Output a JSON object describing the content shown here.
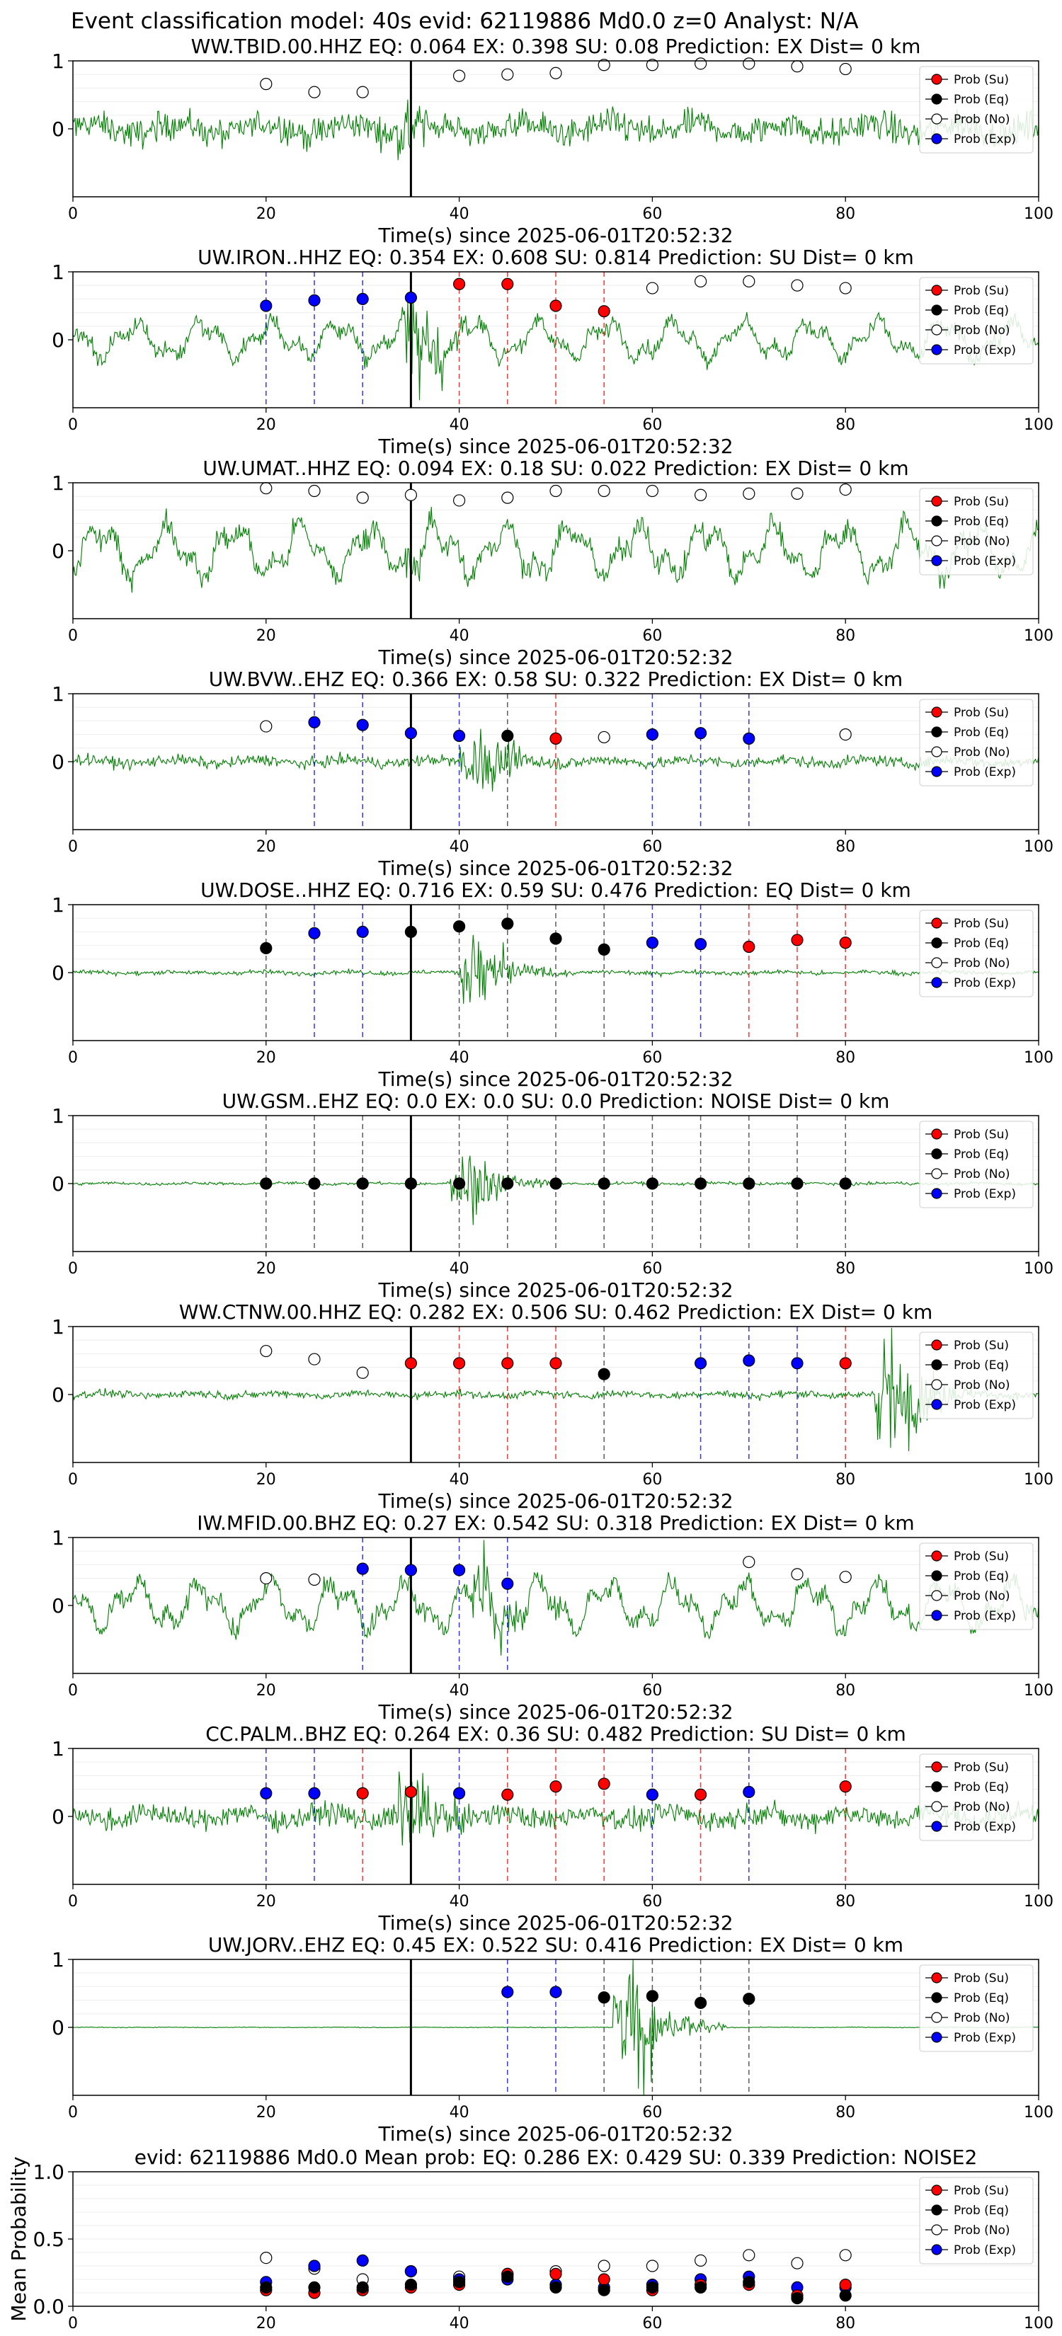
{
  "figure_title": "Event classification model: 40s evid: 62119886 Md0.0 z=0 Analyst: N/A",
  "legend": [
    "Prob (Su)",
    "Prob (Eq)",
    "Prob (No)",
    "Prob (Exp)"
  ],
  "colors": {
    "trace": "#008000",
    "su": "#ff0000",
    "eq": "#000000",
    "no": "#ffffff",
    "exp": "#0000ff",
    "pick": "#000000"
  },
  "chart_data": [
    {
      "type": "line",
      "title": "WW.TBID.00.HHZ   EQ: 0.064  EX: 0.398  SU: 0.08   Prediction: EX    Dist= 0 km",
      "xlabel": "Time(s) since 2025-06-01T20:52:32",
      "ylabel": "",
      "xlim": [
        0,
        100
      ],
      "ylim": [
        -1,
        1
      ],
      "xticks": [
        0,
        20,
        40,
        60,
        80,
        100
      ],
      "yticks": [
        0,
        1
      ],
      "pick_time": 35,
      "noise": {
        "amp": 0.4,
        "kind": "noisy",
        "burst_at": 35,
        "burst_amp": 0.3
      },
      "windows": [
        {
          "t": 20,
          "class": "no",
          "p": 0.66
        },
        {
          "t": 25,
          "class": "no",
          "p": 0.54
        },
        {
          "t": 30,
          "class": "no",
          "p": 0.54
        },
        {
          "t": 40,
          "class": "no",
          "p": 0.78
        },
        {
          "t": 45,
          "class": "no",
          "p": 0.8
        },
        {
          "t": 50,
          "class": "no",
          "p": 0.82
        },
        {
          "t": 55,
          "class": "no",
          "p": 0.94
        },
        {
          "t": 60,
          "class": "no",
          "p": 0.94
        },
        {
          "t": 65,
          "class": "no",
          "p": 0.96
        },
        {
          "t": 70,
          "class": "no",
          "p": 0.96
        },
        {
          "t": 75,
          "class": "no",
          "p": 0.92
        },
        {
          "t": 80,
          "class": "no",
          "p": 0.88
        }
      ]
    },
    {
      "type": "line",
      "title": "UW.IRON..HHZ   EQ: 0.354  EX: 0.608  SU: 0.814   Prediction: SU    Dist= 0 km",
      "xlabel": "Time(s) since 2025-06-01T20:52:32",
      "ylabel": "",
      "xlim": [
        0,
        100
      ],
      "ylim": [
        -1,
        1
      ],
      "xticks": [
        0,
        20,
        40,
        60,
        80,
        100
      ],
      "yticks": [
        0,
        1
      ],
      "pick_time": 35,
      "noise": {
        "amp": 0.35,
        "kind": "wavy",
        "burst_at": 36,
        "burst_amp": 0.55
      },
      "windows": [
        {
          "t": 20,
          "class": "exp",
          "p": 0.5
        },
        {
          "t": 25,
          "class": "exp",
          "p": 0.58
        },
        {
          "t": 30,
          "class": "exp",
          "p": 0.6
        },
        {
          "t": 35,
          "class": "exp",
          "p": 0.62
        },
        {
          "t": 40,
          "class": "su",
          "p": 0.82
        },
        {
          "t": 45,
          "class": "su",
          "p": 0.82
        },
        {
          "t": 50,
          "class": "su",
          "p": 0.5
        },
        {
          "t": 55,
          "class": "su",
          "p": 0.42
        },
        {
          "t": 60,
          "class": "no",
          "p": 0.76
        },
        {
          "t": 65,
          "class": "no",
          "p": 0.86
        },
        {
          "t": 70,
          "class": "no",
          "p": 0.86
        },
        {
          "t": 75,
          "class": "no",
          "p": 0.8
        },
        {
          "t": 80,
          "class": "no",
          "p": 0.76
        }
      ]
    },
    {
      "type": "line",
      "title": "UW.UMAT..HHZ   EQ: 0.094  EX: 0.18  SU: 0.022   Prediction: EX    Dist= 0 km",
      "xlabel": "Time(s) since 2025-06-01T20:52:32",
      "ylabel": "",
      "xlim": [
        0,
        100
      ],
      "ylim": [
        -1,
        1
      ],
      "xticks": [
        0,
        20,
        40,
        60,
        80,
        100
      ],
      "yticks": [
        0,
        1
      ],
      "pick_time": 35,
      "noise": {
        "amp": 0.5,
        "kind": "wavy",
        "burst_at": 36,
        "burst_amp": 0.2
      },
      "windows": [
        {
          "t": 20,
          "class": "no",
          "p": 0.92
        },
        {
          "t": 25,
          "class": "no",
          "p": 0.88
        },
        {
          "t": 30,
          "class": "no",
          "p": 0.78
        },
        {
          "t": 35,
          "class": "no",
          "p": 0.82
        },
        {
          "t": 40,
          "class": "no",
          "p": 0.74
        },
        {
          "t": 45,
          "class": "no",
          "p": 0.78
        },
        {
          "t": 50,
          "class": "no",
          "p": 0.88
        },
        {
          "t": 55,
          "class": "no",
          "p": 0.88
        },
        {
          "t": 60,
          "class": "no",
          "p": 0.88
        },
        {
          "t": 65,
          "class": "no",
          "p": 0.82
        },
        {
          "t": 70,
          "class": "no",
          "p": 0.84
        },
        {
          "t": 75,
          "class": "no",
          "p": 0.84
        },
        {
          "t": 80,
          "class": "no",
          "p": 0.9
        }
      ]
    },
    {
      "type": "line",
      "title": "UW.BVW..EHZ   EQ: 0.366  EX: 0.58  SU: 0.322   Prediction: EX    Dist= 0 km",
      "xlabel": "Time(s) since 2025-06-01T20:52:32",
      "ylabel": "",
      "xlim": [
        0,
        100
      ],
      "ylim": [
        -1,
        1
      ],
      "xticks": [
        0,
        20,
        40,
        60,
        80,
        100
      ],
      "yticks": [
        0,
        1
      ],
      "pick_time": 35,
      "noise": {
        "amp": 0.15,
        "kind": "noisy",
        "burst_at": 42,
        "burst_amp": 0.45
      },
      "windows": [
        {
          "t": 20,
          "class": "no",
          "p": 0.52
        },
        {
          "t": 25,
          "class": "exp",
          "p": 0.58
        },
        {
          "t": 30,
          "class": "exp",
          "p": 0.54
        },
        {
          "t": 35,
          "class": "exp",
          "p": 0.42
        },
        {
          "t": 40,
          "class": "exp",
          "p": 0.38
        },
        {
          "t": 45,
          "class": "eq",
          "p": 0.38
        },
        {
          "t": 50,
          "class": "su",
          "p": 0.34
        },
        {
          "t": 55,
          "class": "no",
          "p": 0.36
        },
        {
          "t": 60,
          "class": "exp",
          "p": 0.4
        },
        {
          "t": 65,
          "class": "exp",
          "p": 0.42
        },
        {
          "t": 70,
          "class": "exp",
          "p": 0.34
        },
        {
          "t": 80,
          "class": "no",
          "p": 0.4
        }
      ]
    },
    {
      "type": "line",
      "title": "UW.DOSE..HHZ   EQ: 0.716  EX: 0.59  SU: 0.476   Prediction: EQ    Dist= 0 km",
      "xlabel": "Time(s) since 2025-06-01T20:52:32",
      "ylabel": "",
      "xlim": [
        0,
        100
      ],
      "ylim": [
        -1,
        1
      ],
      "xticks": [
        0,
        20,
        40,
        60,
        80,
        100
      ],
      "yticks": [
        0,
        1
      ],
      "pick_time": 35,
      "noise": {
        "amp": 0.06,
        "kind": "noisy",
        "burst_at": 42,
        "burst_amp": 0.5
      },
      "windows": [
        {
          "t": 20,
          "class": "eq",
          "p": 0.36
        },
        {
          "t": 25,
          "class": "exp",
          "p": 0.58
        },
        {
          "t": 30,
          "class": "exp",
          "p": 0.6
        },
        {
          "t": 35,
          "class": "eq",
          "p": 0.6
        },
        {
          "t": 40,
          "class": "eq",
          "p": 0.68
        },
        {
          "t": 45,
          "class": "eq",
          "p": 0.72
        },
        {
          "t": 50,
          "class": "eq",
          "p": 0.5
        },
        {
          "t": 55,
          "class": "eq",
          "p": 0.34
        },
        {
          "t": 60,
          "class": "exp",
          "p": 0.44
        },
        {
          "t": 65,
          "class": "exp",
          "p": 0.42
        },
        {
          "t": 70,
          "class": "su",
          "p": 0.38
        },
        {
          "t": 75,
          "class": "su",
          "p": 0.48
        },
        {
          "t": 80,
          "class": "su",
          "p": 0.44
        }
      ]
    },
    {
      "type": "line",
      "title": "UW.GSM..EHZ   EQ: 0.0  EX: 0.0  SU: 0.0   Prediction: NOISE    Dist= 0 km",
      "xlabel": "Time(s) since 2025-06-01T20:52:32",
      "ylabel": "",
      "xlim": [
        0,
        100
      ],
      "ylim": [
        -1,
        1
      ],
      "xticks": [
        0,
        20,
        40,
        60,
        80,
        100
      ],
      "yticks": [
        0,
        1
      ],
      "pick_time": 35,
      "noise": {
        "amp": 0.04,
        "kind": "noisy",
        "burst_at": 41,
        "burst_amp": 0.5
      },
      "windows": [
        {
          "t": 20,
          "class": "eq",
          "p": 0.0
        },
        {
          "t": 25,
          "class": "eq",
          "p": 0.0
        },
        {
          "t": 30,
          "class": "eq",
          "p": 0.0
        },
        {
          "t": 35,
          "class": "eq",
          "p": 0.0
        },
        {
          "t": 40,
          "class": "eq",
          "p": 0.0
        },
        {
          "t": 45,
          "class": "eq",
          "p": 0.0
        },
        {
          "t": 50,
          "class": "eq",
          "p": 0.0
        },
        {
          "t": 55,
          "class": "eq",
          "p": 0.0
        },
        {
          "t": 60,
          "class": "eq",
          "p": 0.0
        },
        {
          "t": 65,
          "class": "eq",
          "p": 0.0
        },
        {
          "t": 70,
          "class": "eq",
          "p": 0.0
        },
        {
          "t": 75,
          "class": "eq",
          "p": 0.0
        },
        {
          "t": 80,
          "class": "eq",
          "p": 0.0
        }
      ]
    },
    {
      "type": "line",
      "title": "WW.CTNW.00.HHZ   EQ: 0.282  EX: 0.506  SU: 0.462   Prediction: EX    Dist= 0 km",
      "xlabel": "Time(s) since 2025-06-01T20:52:32",
      "ylabel": "",
      "xlim": [
        0,
        100
      ],
      "ylim": [
        -1,
        1
      ],
      "xticks": [
        0,
        20,
        40,
        60,
        80,
        100
      ],
      "yticks": [
        0,
        1
      ],
      "pick_time": 35,
      "noise": {
        "amp": 0.1,
        "kind": "noisy",
        "burst_at": 85,
        "burst_amp": 0.8
      },
      "windows": [
        {
          "t": 20,
          "class": "no",
          "p": 0.64
        },
        {
          "t": 25,
          "class": "no",
          "p": 0.52
        },
        {
          "t": 30,
          "class": "no",
          "p": 0.32
        },
        {
          "t": 35,
          "class": "su",
          "p": 0.46
        },
        {
          "t": 40,
          "class": "su",
          "p": 0.46
        },
        {
          "t": 45,
          "class": "su",
          "p": 0.46
        },
        {
          "t": 50,
          "class": "su",
          "p": 0.46
        },
        {
          "t": 55,
          "class": "eq",
          "p": 0.3
        },
        {
          "t": 65,
          "class": "exp",
          "p": 0.46
        },
        {
          "t": 70,
          "class": "exp",
          "p": 0.5
        },
        {
          "t": 75,
          "class": "exp",
          "p": 0.46
        },
        {
          "t": 80,
          "class": "su",
          "p": 0.46
        }
      ]
    },
    {
      "type": "line",
      "title": "IW.MFID.00.BHZ   EQ: 0.27  EX: 0.542  SU: 0.318   Prediction: EX    Dist= 0 km",
      "xlabel": "Time(s) since 2025-06-01T20:52:32",
      "ylabel": "",
      "xlim": [
        0,
        100
      ],
      "ylim": [
        -1,
        1
      ],
      "xticks": [
        0,
        20,
        40,
        60,
        80,
        100
      ],
      "yticks": [
        0,
        1
      ],
      "pick_time": 35,
      "noise": {
        "amp": 0.45,
        "kind": "wavy",
        "burst_at": 43,
        "burst_amp": 0.5
      },
      "windows": [
        {
          "t": 20,
          "class": "no",
          "p": 0.4
        },
        {
          "t": 25,
          "class": "no",
          "p": 0.38
        },
        {
          "t": 30,
          "class": "exp",
          "p": 0.54
        },
        {
          "t": 35,
          "class": "exp",
          "p": 0.52
        },
        {
          "t": 40,
          "class": "exp",
          "p": 0.52
        },
        {
          "t": 45,
          "class": "exp",
          "p": 0.32
        },
        {
          "t": 70,
          "class": "no",
          "p": 0.64
        },
        {
          "t": 75,
          "class": "no",
          "p": 0.46
        },
        {
          "t": 80,
          "class": "no",
          "p": 0.42
        }
      ]
    },
    {
      "type": "line",
      "title": "CC.PALM..BHZ   EQ: 0.264  EX: 0.36  SU: 0.482   Prediction: SU    Dist= 0 km",
      "xlabel": "Time(s) since 2025-06-01T20:52:32",
      "ylabel": "",
      "xlim": [
        0,
        100
      ],
      "ylim": [
        -1,
        1
      ],
      "xticks": [
        0,
        20,
        40,
        60,
        80,
        100
      ],
      "yticks": [
        0,
        1
      ],
      "pick_time": 35,
      "noise": {
        "amp": 0.3,
        "kind": "noisy",
        "burst_at": 35,
        "burst_amp": 0.6
      },
      "windows": [
        {
          "t": 20,
          "class": "exp",
          "p": 0.34
        },
        {
          "t": 25,
          "class": "exp",
          "p": 0.34
        },
        {
          "t": 30,
          "class": "su",
          "p": 0.34
        },
        {
          "t": 35,
          "class": "su",
          "p": 0.36
        },
        {
          "t": 40,
          "class": "exp",
          "p": 0.34
        },
        {
          "t": 45,
          "class": "su",
          "p": 0.32
        },
        {
          "t": 50,
          "class": "su",
          "p": 0.44
        },
        {
          "t": 55,
          "class": "su",
          "p": 0.48
        },
        {
          "t": 60,
          "class": "exp",
          "p": 0.32
        },
        {
          "t": 65,
          "class": "su",
          "p": 0.32
        },
        {
          "t": 70,
          "class": "exp",
          "p": 0.36
        },
        {
          "t": 80,
          "class": "su",
          "p": 0.44
        }
      ]
    },
    {
      "type": "line",
      "title": "UW.JORV..EHZ   EQ: 0.45  EX: 0.522  SU: 0.416   Prediction: EX    Dist= 0 km",
      "xlabel": "Time(s) since 2025-06-01T20:52:32",
      "ylabel": "",
      "xlim": [
        0,
        100
      ],
      "ylim": [
        -1,
        1
      ],
      "xticks": [
        0,
        20,
        40,
        60,
        80,
        100
      ],
      "yticks": [
        0,
        1
      ],
      "pick_time": 35,
      "noise": {
        "amp": 0.01,
        "kind": "noisy",
        "burst_at": 58,
        "burst_amp": 0.9
      },
      "windows": [
        {
          "t": 45,
          "class": "exp",
          "p": 0.52
        },
        {
          "t": 50,
          "class": "exp",
          "p": 0.52
        },
        {
          "t": 55,
          "class": "eq",
          "p": 0.44
        },
        {
          "t": 60,
          "class": "eq",
          "p": 0.46
        },
        {
          "t": 65,
          "class": "eq",
          "p": 0.36
        },
        {
          "t": 70,
          "class": "eq",
          "p": 0.42
        }
      ]
    },
    {
      "type": "scatter",
      "title": "evid: 62119886  Md0.0   Mean prob:   EQ: 0.286  EX: 0.429  SU: 0.339   Prediction: NOISE2",
      "xlabel": "",
      "ylabel": "Mean Probability",
      "xlim": [
        0,
        100
      ],
      "ylim": [
        0,
        1
      ],
      "xticks": [
        0,
        20,
        40,
        60,
        80,
        100
      ],
      "yticks": [
        0.0,
        0.5,
        1.0
      ],
      "ytick_labels": [
        "0.0",
        "0.5",
        "1.0"
      ],
      "x": [
        20,
        25,
        30,
        35,
        40,
        45,
        50,
        55,
        60,
        65,
        70,
        75,
        80
      ],
      "series": [
        {
          "name": "Prob (No)",
          "class": "no",
          "values": [
            0.36,
            0.28,
            0.2,
            0.26,
            0.22,
            0.24,
            0.26,
            0.3,
            0.3,
            0.34,
            0.38,
            0.32,
            0.38
          ]
        },
        {
          "name": "Prob (Exp)",
          "class": "exp",
          "values": [
            0.18,
            0.3,
            0.34,
            0.26,
            0.2,
            0.2,
            0.16,
            0.14,
            0.16,
            0.2,
            0.22,
            0.14,
            0.14
          ]
        },
        {
          "name": "Prob (Su)",
          "class": "su",
          "values": [
            0.12,
            0.1,
            0.12,
            0.14,
            0.16,
            0.24,
            0.24,
            0.2,
            0.12,
            0.16,
            0.16,
            0.08,
            0.16
          ]
        },
        {
          "name": "Prob (Eq)",
          "class": "eq",
          "values": [
            0.14,
            0.14,
            0.14,
            0.16,
            0.18,
            0.22,
            0.14,
            0.12,
            0.14,
            0.14,
            0.18,
            0.06,
            0.08
          ]
        }
      ]
    }
  ]
}
